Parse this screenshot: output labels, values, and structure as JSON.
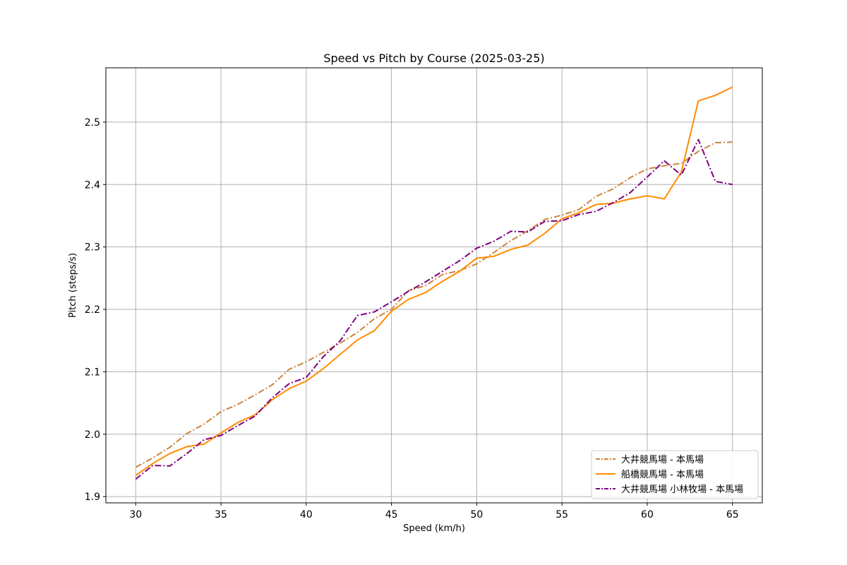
{
  "chart_data": {
    "type": "line",
    "title": "Speed vs Pitch by Course (2025-03-25)",
    "xlabel": "Speed (km/h)",
    "ylabel": "Pitch (steps/s)",
    "xlim": [
      28.25,
      66.75
    ],
    "ylim": [
      1.89,
      2.587
    ],
    "xticks": [
      30,
      35,
      40,
      45,
      50,
      55,
      60,
      65
    ],
    "yticks": [
      1.9,
      2.0,
      2.1,
      2.2,
      2.3,
      2.4,
      2.5
    ],
    "grid": true,
    "legend_position": "lower-right",
    "x": [
      30,
      31,
      32,
      33,
      34,
      35,
      36,
      37,
      38,
      39,
      40,
      41,
      42,
      43,
      44,
      45,
      46,
      47,
      48,
      49,
      50,
      51,
      52,
      53,
      54,
      55,
      56,
      57,
      58,
      59,
      60,
      61,
      62,
      63,
      64,
      65
    ],
    "series": [
      {
        "name": "大井競馬場 - 本馬場",
        "color": "#cd853f",
        "dash": "dashdot",
        "values": [
          1.947,
          1.962,
          1.979,
          2.001,
          2.016,
          2.036,
          2.048,
          2.063,
          2.079,
          2.104,
          2.116,
          2.131,
          2.146,
          2.163,
          2.185,
          2.2,
          2.23,
          2.238,
          2.256,
          2.262,
          2.273,
          2.291,
          2.31,
          2.326,
          2.344,
          2.351,
          2.36,
          2.381,
          2.393,
          2.411,
          2.425,
          2.43,
          2.434,
          2.453,
          2.467,
          2.468
        ]
      },
      {
        "name": "船橋競馬場 - 本馬場",
        "color": "#ff8c00",
        "dash": "solid",
        "values": [
          1.934,
          1.953,
          1.969,
          1.98,
          1.984,
          2.002,
          2.019,
          2.031,
          2.055,
          2.073,
          2.085,
          2.105,
          2.128,
          2.151,
          2.166,
          2.197,
          2.216,
          2.227,
          2.245,
          2.261,
          2.282,
          2.285,
          2.296,
          2.303,
          2.322,
          2.345,
          2.355,
          2.368,
          2.37,
          2.377,
          2.382,
          2.377,
          2.42,
          2.534,
          2.543,
          2.556
        ]
      },
      {
        "name": "大井競馬場 小林牧場 - 本馬場",
        "color": "#800080",
        "dash": "dashdot",
        "values": [
          1.928,
          1.95,
          1.949,
          1.969,
          1.991,
          1.998,
          2.014,
          2.029,
          2.058,
          2.081,
          2.091,
          2.124,
          2.15,
          2.19,
          2.196,
          2.212,
          2.229,
          2.244,
          2.261,
          2.278,
          2.298,
          2.309,
          2.325,
          2.324,
          2.341,
          2.342,
          2.352,
          2.357,
          2.371,
          2.387,
          2.412,
          2.438,
          2.415,
          2.472,
          2.405,
          2.4
        ]
      }
    ]
  }
}
